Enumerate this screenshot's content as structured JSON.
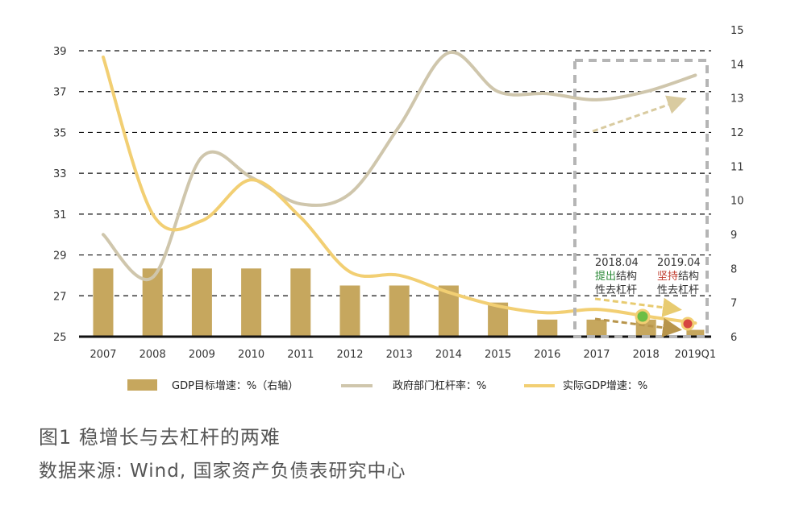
{
  "caption": {
    "title": "图1  稳增长与去杠杆的两难",
    "source": "数据来源: Wind, 国家资产负债表研究中心"
  },
  "colors": {
    "bar": "#C6A75E",
    "gov_leverage": "#CFC6AC",
    "real_gdp": "#F2CF73",
    "grid": "#111111",
    "box": "#B5B5B5",
    "green_text": "#2E8B3A",
    "red_text": "#C0392B",
    "marker_green": "#6DBE45",
    "marker_red": "#D64541",
    "arrow_light": "#E8CB70",
    "arrow_dark": "#B8954B",
    "arrow_upper": "#D9CBA0"
  },
  "chart_data": {
    "type": "bar+line",
    "categories": [
      "2007",
      "2008",
      "2009",
      "2010",
      "2011",
      "2012",
      "2013",
      "2014",
      "2015",
      "2016",
      "2017",
      "2018",
      "2019Q1"
    ],
    "left_axis": {
      "ticks": [
        "25",
        "27",
        "29",
        "31",
        "33",
        "35",
        "37",
        "39"
      ],
      "ylim": [
        25,
        39
      ]
    },
    "right_axis": {
      "ticks": [
        "6",
        "7",
        "8",
        "9",
        "10",
        "11",
        "12",
        "13",
        "14",
        "15"
      ],
      "ylim": [
        6,
        15
      ]
    },
    "grid": "dashed horizontal at left-axis ticks",
    "legend_position": "bottom",
    "series": [
      {
        "name": "GDP目标增速：%（右轴）",
        "type": "bar",
        "axis": "right",
        "values": [
          8,
          8,
          8,
          8,
          8,
          7.5,
          7.5,
          7.5,
          7,
          6.5,
          6.5,
          6.5,
          6.2
        ]
      },
      {
        "name": "政府部门杠杆率：%",
        "type": "line",
        "axis": "left",
        "values": [
          30.0,
          27.9,
          33.8,
          32.8,
          31.5,
          32.0,
          35.3,
          38.9,
          37.0,
          36.9,
          36.6,
          37.0,
          37.8
        ]
      },
      {
        "name": "实际GDP增速：%",
        "type": "line",
        "axis": "right",
        "values": [
          14.2,
          9.6,
          9.4,
          10.6,
          9.5,
          7.9,
          7.8,
          7.3,
          6.9,
          6.7,
          6.8,
          6.6,
          6.4
        ]
      }
    ],
    "annotations": [
      {
        "lines": [
          "2018.04",
          "提出",
          "结构",
          "性去杠杆"
        ]
      },
      {
        "lines": [
          "2019.04",
          "坚持",
          "结构",
          "性去杠杆"
        ]
      }
    ]
  }
}
